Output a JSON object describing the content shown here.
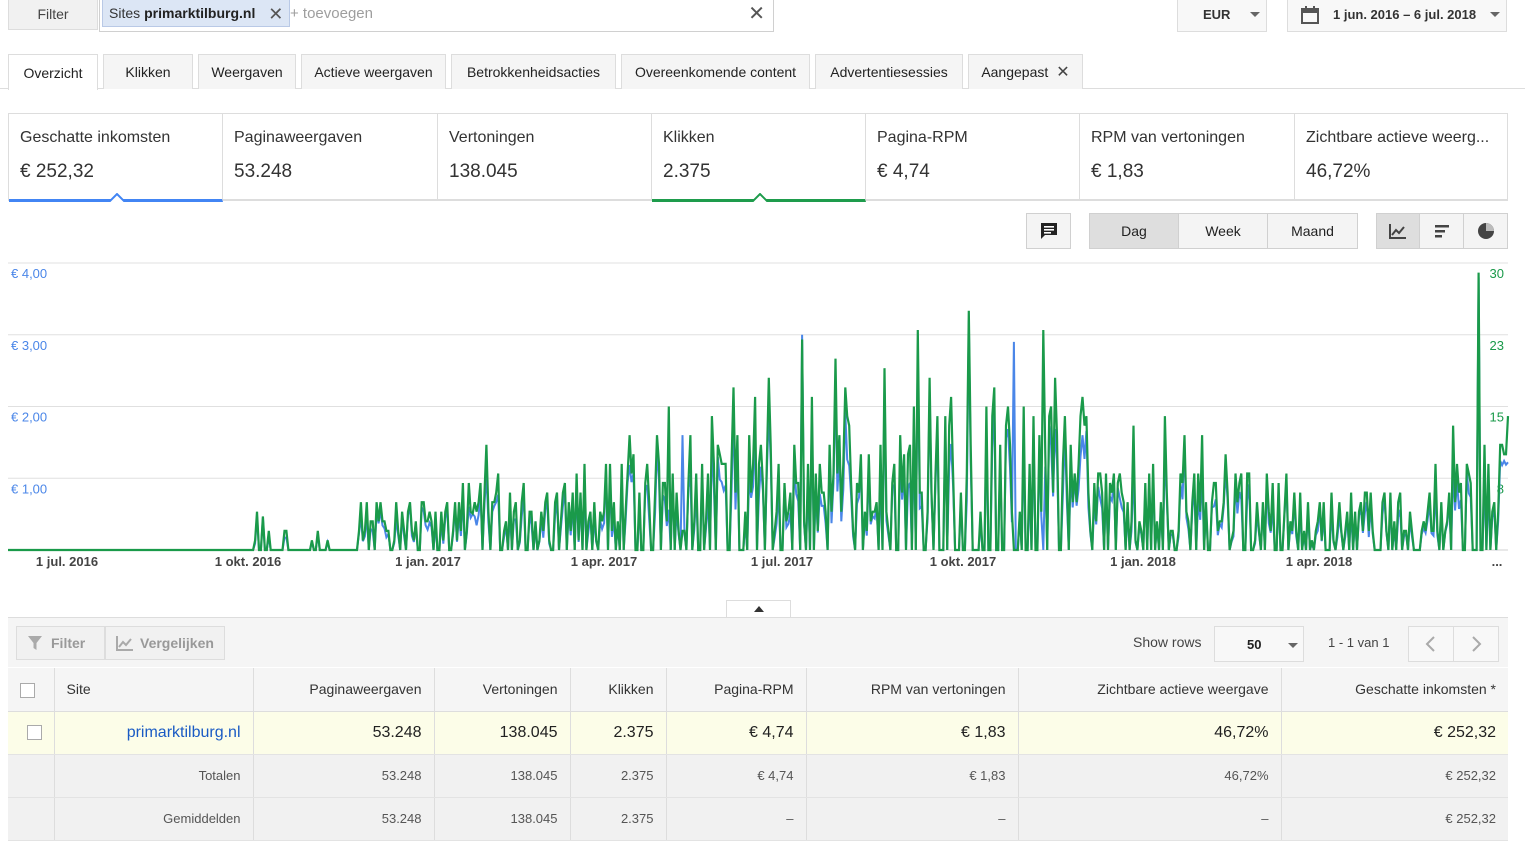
{
  "filterbar": {
    "filter_label": "Filter",
    "chip_prefix": "Sites",
    "chip_value": "primarktilburg.nl",
    "add_placeholder": "+ toevoegen",
    "currency": "EUR",
    "date_range": "1 jun. 2016 – 6 jul. 2018"
  },
  "tabs": [
    {
      "label": "Overzicht",
      "active": true
    },
    {
      "label": "Klikken"
    },
    {
      "label": "Weergaven"
    },
    {
      "label": "Actieve weergaven"
    },
    {
      "label": "Betrokkenheidsacties"
    },
    {
      "label": "Overeenkomende content"
    },
    {
      "label": "Advertentiesessies"
    },
    {
      "label": "Aangepast",
      "closable": true
    }
  ],
  "metrics": [
    {
      "label": "Geschatte inkomsten",
      "value": "€ 252,32",
      "selected": "blue"
    },
    {
      "label": "Paginaweergaven",
      "value": "53.248"
    },
    {
      "label": "Vertoningen",
      "value": "138.045"
    },
    {
      "label": "Klikken",
      "value": "2.375",
      "selected": "green"
    },
    {
      "label": "Pagina-RPM",
      "value": "€ 4,74"
    },
    {
      "label": "RPM van vertoningen",
      "value": "€ 1,83"
    },
    {
      "label": "Zichtbare actieve weerg...",
      "value": "46,72%"
    }
  ],
  "chart_controls": {
    "period": [
      "Dag",
      "Week",
      "Maand"
    ],
    "active_period": "Dag",
    "icons": [
      "comment-icon",
      "line-chart-icon",
      "bar-chart-icon",
      "pie-chart-icon"
    ]
  },
  "chart_data": {
    "type": "line",
    "x_tick_labels": [
      "1 jul. 2016",
      "1 okt. 2016",
      "1 jan. 2017",
      "1 apr. 2017",
      "1 jul. 2017",
      "1 okt. 2017",
      "1 jan. 2018",
      "1 apr. 2018",
      "..."
    ],
    "y_left_ticks": [
      "€ 4,00",
      "€ 3,00",
      "€ 2,00",
      "€ 1,00"
    ],
    "y_left_range": [
      0,
      4
    ],
    "y_right_ticks": [
      "30",
      "23",
      "15",
      "8"
    ],
    "y_right_range": [
      0,
      30
    ],
    "colors": {
      "earnings": "#4a86e8",
      "clicks": "#1a9a4a",
      "grid": "#e0e0e0"
    },
    "series": [
      {
        "role": "earnings",
        "axis": "left",
        "peaks": [
          [
            0.17,
            0.45
          ],
          [
            0.31,
            0.5
          ],
          [
            0.45,
            1.6
          ],
          [
            0.53,
            3.0
          ],
          [
            0.64,
            3.2
          ],
          [
            0.67,
            2.9
          ],
          [
            0.98,
            3.8
          ]
        ]
      },
      {
        "role": "clicks",
        "axis": "right",
        "peaks": [
          [
            0.17,
            3.5
          ],
          [
            0.31,
            3.8
          ],
          [
            0.44,
            15
          ],
          [
            0.53,
            22
          ],
          [
            0.64,
            25
          ],
          [
            0.69,
            23
          ],
          [
            0.98,
            29
          ]
        ]
      }
    ]
  },
  "grid_toolbar": {
    "filter_label": "Filter",
    "compare_label": "Vergelijken",
    "show_rows_label": "Show rows",
    "rows_value": "50",
    "range_label": "1 - 1 van 1"
  },
  "table": {
    "headers": [
      "Site",
      "Paginaweergaven",
      "Vertoningen",
      "Klikken",
      "Pagina-RPM",
      "RPM van vertoningen",
      "Zichtbare actieve weergave",
      "Geschatte inkomsten *"
    ],
    "row": [
      "primarktilburg.nl",
      "53.248",
      "138.045",
      "2.375",
      "€ 4,74",
      "€ 1,83",
      "46,72%",
      "€ 252,32"
    ],
    "totals": [
      "Totalen",
      "53.248",
      "138.045",
      "2.375",
      "€ 4,74",
      "€ 1,83",
      "46,72%",
      "€ 252,32"
    ],
    "averages": [
      "Gemiddelden",
      "53.248",
      "138.045",
      "2.375",
      "–",
      "–",
      "–",
      "€ 252,32"
    ]
  }
}
